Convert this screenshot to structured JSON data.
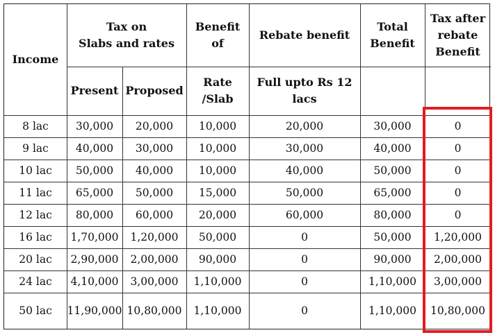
{
  "headers": {
    "income": "Income",
    "tax_on_slabs": [
      "Tax on",
      "Slabs and rates"
    ],
    "benefit_of": [
      "Benefit",
      "of"
    ],
    "rebate_benefit": "Rebate benefit",
    "total_benefit": [
      "Total",
      "Benefit"
    ],
    "tax_after": [
      "Tax after",
      "rebate",
      "Benefit"
    ],
    "present": "Present",
    "proposed": "Proposed",
    "rate_slab": [
      "Rate",
      "/Slab"
    ],
    "full_upto": [
      "Full upto Rs 12",
      "lacs"
    ]
  },
  "rows": [
    {
      "income": "8 lac",
      "present": "30,000",
      "proposed": "20,000",
      "rate": "10,000",
      "rebate": "20,000",
      "total": "30,000",
      "after": "0"
    },
    {
      "income": "9 lac",
      "present": "40,000",
      "proposed": "30,000",
      "rate": "10,000",
      "rebate": "30,000",
      "total": "40,000",
      "after": "0"
    },
    {
      "income": "10 lac",
      "present": "50,000",
      "proposed": "40,000",
      "rate": "10,000",
      "rebate": "40,000",
      "total": "50,000",
      "after": "0"
    },
    {
      "income": "11 lac",
      "present": "65,000",
      "proposed": "50,000",
      "rate": "15,000",
      "rebate": "50,000",
      "total": "65,000",
      "after": "0"
    },
    {
      "income": "12 lac",
      "present": "80,000",
      "proposed": "60,000",
      "rate": "20,000",
      "rebate": "60,000",
      "total": "80,000",
      "after": "0"
    },
    {
      "income": "16 lac",
      "present": "1,70,000",
      "proposed": "1,20,000",
      "rate": "50,000",
      "rebate": "0",
      "total": "50,000",
      "after": "1,20,000"
    },
    {
      "income": "20 lac",
      "present": "2,90,000",
      "proposed": "2,00,000",
      "rate": "90,000",
      "rebate": "0",
      "total": "90,000",
      "after": "2,00,000"
    },
    {
      "income": "24 lac",
      "present": "4,10,000",
      "proposed": "3,00,000",
      "rate": "1,10,000",
      "rebate": "0",
      "total": "1,10,000",
      "after": "3,00,000"
    },
    {
      "income": "50 lac",
      "present": "11,90,000",
      "proposed": "10,80,000",
      "rate": "1,10,000",
      "rebate": "0",
      "total": "1,10,000",
      "after": "10,80,000"
    }
  ],
  "highlight_color": "#e31b23"
}
